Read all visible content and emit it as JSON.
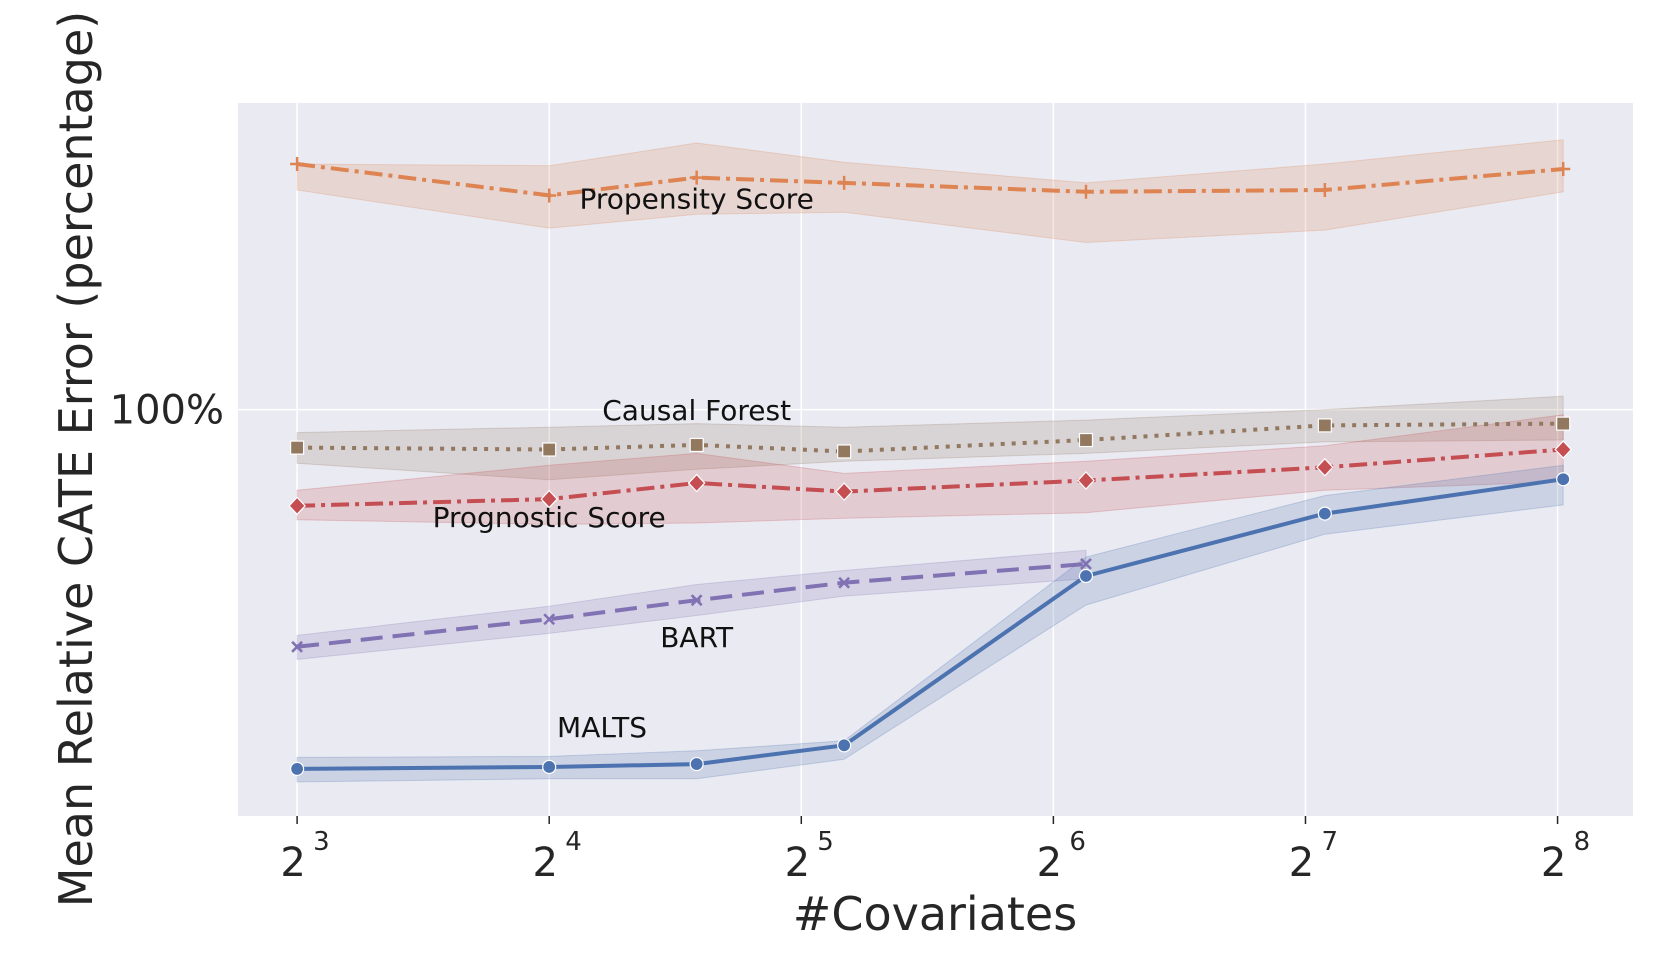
{
  "chart_data": {
    "type": "line",
    "xlabel": "#Covariates",
    "ylabel": "Mean Relative CATE Error (percentage)",
    "x_scale": "log2",
    "y_scale": "log",
    "xlim": [
      6.8,
      315
    ],
    "ylim": [
      0.305,
      2.45
    ],
    "x_ticks": [
      {
        "value": 8,
        "base": "2",
        "exp": "3"
      },
      {
        "value": 16,
        "base": "2",
        "exp": "4"
      },
      {
        "value": 32,
        "base": "2",
        "exp": "5"
      },
      {
        "value": 64,
        "base": "2",
        "exp": "6"
      },
      {
        "value": 128,
        "base": "2",
        "exp": "7"
      },
      {
        "value": 256,
        "base": "2",
        "exp": "8"
      }
    ],
    "y_ticks": [
      {
        "value": 1.0,
        "label": "100%"
      }
    ],
    "grid": true,
    "colors": {
      "background": "#eaeaf2",
      "grid": "#ffffff"
    },
    "series": [
      {
        "name": "Propensity Score",
        "color": "#dd8452",
        "dash": "18,6,4,6",
        "marker": "plus",
        "x": [
          8,
          16,
          24,
          36,
          70,
          135,
          260
        ],
        "y": [
          2.05,
          1.87,
          1.97,
          1.94,
          1.89,
          1.9,
          2.02
        ],
        "lower": [
          1.9,
          1.7,
          1.77,
          1.78,
          1.63,
          1.69,
          1.89
        ],
        "upper": [
          2.05,
          2.04,
          2.18,
          2.06,
          1.94,
          2.05,
          2.2
        ]
      },
      {
        "name": "Causal Forest",
        "color": "#937860",
        "dash": "4,7",
        "marker": "square",
        "x": [
          8,
          16,
          24,
          36,
          70,
          135,
          260
        ],
        "y": [
          0.895,
          0.89,
          0.902,
          0.885,
          0.915,
          0.955,
          0.96
        ],
        "lower": [
          0.855,
          0.815,
          0.84,
          0.86,
          0.88,
          0.91,
          0.915
        ],
        "upper": [
          0.935,
          0.95,
          0.96,
          0.95,
          0.97,
          1.0,
          1.04
        ]
      },
      {
        "name": "Prognostic Score",
        "color": "#c44e52",
        "dash": "18,6,4,6",
        "marker": "diamond",
        "x": [
          8,
          16,
          24,
          36,
          70,
          135,
          260
        ],
        "y": [
          0.755,
          0.77,
          0.807,
          0.787,
          0.813,
          0.845,
          0.89
        ],
        "lower": [
          0.725,
          0.715,
          0.718,
          0.728,
          0.74,
          0.79,
          0.81
        ],
        "upper": [
          0.79,
          0.85,
          0.88,
          0.83,
          0.86,
          0.9,
          0.985
        ]
      },
      {
        "name": "BART",
        "color": "#8172b3",
        "dash": "22,10",
        "marker": "x",
        "x": [
          8,
          16,
          24,
          36,
          70
        ],
        "y": [
          0.5,
          0.542,
          0.573,
          0.603,
          0.637
        ],
        "lower": [
          0.482,
          0.52,
          0.548,
          0.58,
          0.61
        ],
        "upper": [
          0.517,
          0.563,
          0.6,
          0.625,
          0.663
        ]
      },
      {
        "name": "MALTS",
        "color": "#4c72b0",
        "dash": "",
        "marker": "circle",
        "x": [
          8,
          16,
          24,
          36,
          70,
          135,
          260
        ],
        "y": [
          0.35,
          0.352,
          0.355,
          0.375,
          0.615,
          0.738,
          0.816
        ],
        "lower": [
          0.337,
          0.34,
          0.34,
          0.36,
          0.565,
          0.695,
          0.757
        ],
        "upper": [
          0.362,
          0.363,
          0.369,
          0.38,
          0.65,
          0.778,
          0.85
        ]
      }
    ],
    "annotations": [
      {
        "text": "Propensity Score",
        "x": 24,
        "y": 1.8
      },
      {
        "text": "Causal Forest",
        "x": 24,
        "y": 0.97
      },
      {
        "text": "Prognostic Score",
        "x": 16,
        "y": 0.71
      },
      {
        "text": "BART",
        "x": 24,
        "y": 0.5
      },
      {
        "text": "MALTS",
        "x": 18.5,
        "y": 0.384
      }
    ]
  }
}
